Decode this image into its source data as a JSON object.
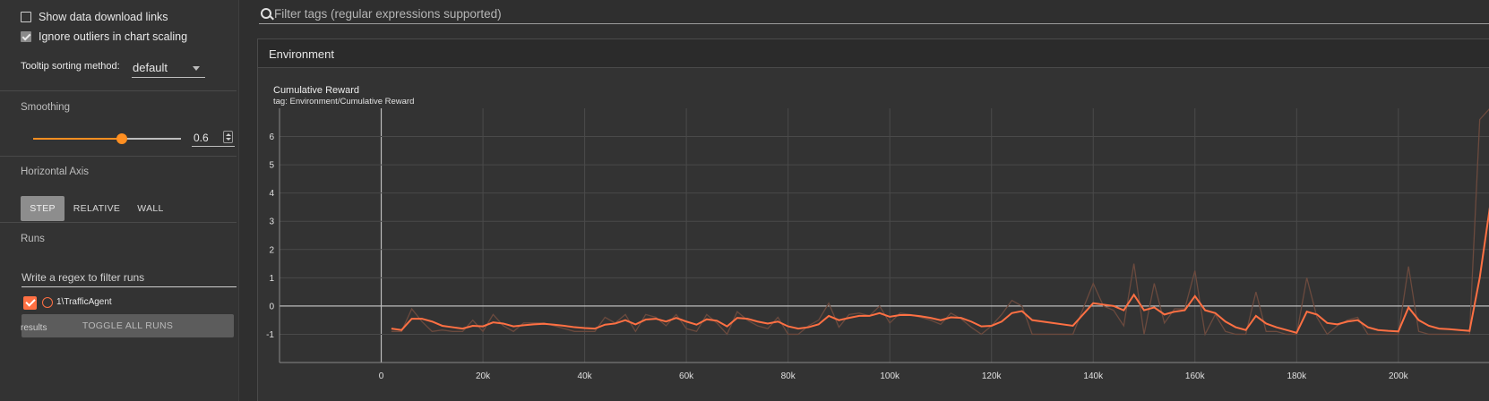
{
  "sidebar": {
    "show_download_links": "Show data download links",
    "ignore_outliers": "Ignore outliers in chart scaling",
    "tooltip_label": "Tooltip sorting method:",
    "tooltip_value": "default",
    "smoothing_title": "Smoothing",
    "smoothing_value": "0.6",
    "smoothing_fraction": 0.6,
    "horizontal_axis_title": "Horizontal Axis",
    "axis_options": [
      "STEP",
      "RELATIVE",
      "WALL"
    ],
    "axis_selected": "STEP",
    "runs_title": "Runs",
    "runs_filter_placeholder": "Write a regex to filter runs",
    "run_name": "1\\TrafficAgent",
    "toggle_all_runs": "TOGGLE ALL RUNS",
    "results": "results"
  },
  "main": {
    "filter_placeholder": "Filter tags (regular expressions supported)",
    "group_name": "Environment",
    "card_title": "Cumulative Reward",
    "card_tag": "tag: Environment/Cumulative Reward"
  },
  "colors": {
    "accent": "#ff8f21",
    "run_color": "#ff7043",
    "raw_line": "#6b4a3e"
  },
  "chart_data": {
    "type": "line",
    "title": "Cumulative Reward",
    "xlabel": "",
    "ylabel": "",
    "x_ticks": [
      "0",
      "20k",
      "40k",
      "60k",
      "80k",
      "100k",
      "120k",
      "140k",
      "160k",
      "180k",
      "200k"
    ],
    "y_ticks": [
      "-1",
      "0",
      "1",
      "2",
      "3",
      "4",
      "5",
      "6"
    ],
    "xlim": [
      -20000,
      218000
    ],
    "ylim": [
      -2,
      7
    ],
    "grid": true,
    "series": [
      {
        "name": "1\\TrafficAgent",
        "smoothed": true,
        "x": [
          2000,
          4000,
          6000,
          8000,
          10000,
          12000,
          14000,
          16000,
          18000,
          20000,
          22000,
          24000,
          26000,
          28000,
          30000,
          32000,
          34000,
          36000,
          38000,
          40000,
          42000,
          44000,
          46000,
          48000,
          50000,
          52000,
          54000,
          56000,
          58000,
          60000,
          62000,
          64000,
          66000,
          68000,
          70000,
          72000,
          74000,
          76000,
          78000,
          80000,
          82000,
          84000,
          86000,
          88000,
          90000,
          92000,
          94000,
          96000,
          98000,
          100000,
          102000,
          104000,
          106000,
          108000,
          110000,
          112000,
          114000,
          116000,
          118000,
          120000,
          122000,
          124000,
          126000,
          128000,
          136000,
          140000,
          142000,
          144000,
          146000,
          148000,
          150000,
          152000,
          154000,
          156000,
          158000,
          160000,
          162000,
          164000,
          166000,
          168000,
          170000,
          172000,
          174000,
          176000,
          178000,
          180000,
          182000,
          184000,
          186000,
          188000,
          190000,
          192000,
          194000,
          196000,
          198000,
          200000,
          202000,
          204000,
          206000,
          208000,
          210000,
          212000,
          214000,
          216000,
          218000
        ],
        "y": [
          -0.8,
          -0.85,
          -0.45,
          -0.45,
          -0.55,
          -0.7,
          -0.75,
          -0.8,
          -0.7,
          -0.72,
          -0.58,
          -0.62,
          -0.72,
          -0.68,
          -0.65,
          -0.63,
          -0.66,
          -0.7,
          -0.75,
          -0.78,
          -0.8,
          -0.66,
          -0.62,
          -0.5,
          -0.65,
          -0.48,
          -0.45,
          -0.55,
          -0.42,
          -0.55,
          -0.66,
          -0.47,
          -0.52,
          -0.72,
          -0.42,
          -0.45,
          -0.55,
          -0.62,
          -0.55,
          -0.72,
          -0.8,
          -0.75,
          -0.65,
          -0.35,
          -0.5,
          -0.42,
          -0.35,
          -0.35,
          -0.25,
          -0.38,
          -0.32,
          -0.32,
          -0.36,
          -0.42,
          -0.5,
          -0.4,
          -0.42,
          -0.55,
          -0.72,
          -0.7,
          -0.55,
          -0.25,
          -0.18,
          -0.5,
          -0.7,
          0.1,
          0.05,
          0.0,
          -0.15,
          0.4,
          -0.15,
          -0.05,
          -0.3,
          -0.2,
          -0.15,
          0.35,
          -0.15,
          -0.25,
          -0.55,
          -0.75,
          -0.85,
          -0.35,
          -0.62,
          -0.75,
          -0.85,
          -0.95,
          -0.2,
          -0.3,
          -0.6,
          -0.65,
          -0.55,
          -0.5,
          -0.75,
          -0.85,
          -0.88,
          -0.9,
          -0.05,
          -0.5,
          -0.7,
          -0.8,
          -0.82,
          -0.85,
          -0.88,
          1.0,
          3.5
        ]
      },
      {
        "name": "1\\TrafficAgent",
        "smoothed": false,
        "x": [
          2000,
          4000,
          6000,
          8000,
          10000,
          12000,
          14000,
          16000,
          18000,
          20000,
          22000,
          24000,
          26000,
          28000,
          30000,
          32000,
          34000,
          36000,
          38000,
          40000,
          42000,
          44000,
          46000,
          48000,
          50000,
          52000,
          54000,
          56000,
          58000,
          60000,
          62000,
          64000,
          66000,
          68000,
          70000,
          72000,
          74000,
          76000,
          78000,
          80000,
          82000,
          84000,
          86000,
          88000,
          90000,
          92000,
          94000,
          96000,
          98000,
          100000,
          102000,
          104000,
          106000,
          108000,
          110000,
          112000,
          114000,
          116000,
          118000,
          120000,
          122000,
          124000,
          126000,
          128000,
          136000,
          140000,
          142000,
          144000,
          146000,
          148000,
          150000,
          152000,
          154000,
          156000,
          158000,
          160000,
          162000,
          164000,
          166000,
          168000,
          170000,
          172000,
          174000,
          176000,
          178000,
          180000,
          182000,
          184000,
          186000,
          188000,
          190000,
          192000,
          194000,
          196000,
          198000,
          200000,
          202000,
          204000,
          206000,
          208000,
          210000,
          212000,
          214000,
          216000,
          218000
        ],
        "y": [
          -0.9,
          -0.9,
          -0.1,
          -0.55,
          -0.9,
          -0.85,
          -0.9,
          -0.9,
          -0.5,
          -0.9,
          -0.3,
          -0.7,
          -0.9,
          -0.6,
          -0.6,
          -0.6,
          -0.7,
          -0.8,
          -0.9,
          -0.9,
          -0.9,
          -0.4,
          -0.6,
          -0.3,
          -0.9,
          -0.3,
          -0.4,
          -0.7,
          -0.3,
          -0.8,
          -0.9,
          -0.3,
          -0.6,
          -1.0,
          -0.2,
          -0.5,
          -0.7,
          -0.8,
          -0.4,
          -1.0,
          -1.0,
          -0.7,
          -0.5,
          0.1,
          -0.75,
          -0.3,
          -0.25,
          -0.35,
          0.0,
          -0.6,
          -0.25,
          -0.3,
          -0.4,
          -0.5,
          -0.65,
          -0.25,
          -0.45,
          -0.75,
          -1.0,
          -0.7,
          -0.3,
          0.2,
          0.0,
          -1.0,
          -1.0,
          0.8,
          0.0,
          -0.15,
          -0.7,
          1.5,
          -1.0,
          0.8,
          -0.6,
          -0.1,
          -0.1,
          1.25,
          -1.0,
          -0.3,
          -0.9,
          -1.0,
          -1.0,
          0.5,
          -0.9,
          -0.9,
          -1.0,
          -1.0,
          1.0,
          -0.4,
          -1.0,
          -0.7,
          -0.5,
          -0.4,
          -1.0,
          -1.0,
          -1.0,
          -1.0,
          1.4,
          -0.9,
          -1.0,
          -1.0,
          -1.0,
          -1.0,
          -1.0,
          6.6,
          7.0
        ]
      }
    ]
  }
}
